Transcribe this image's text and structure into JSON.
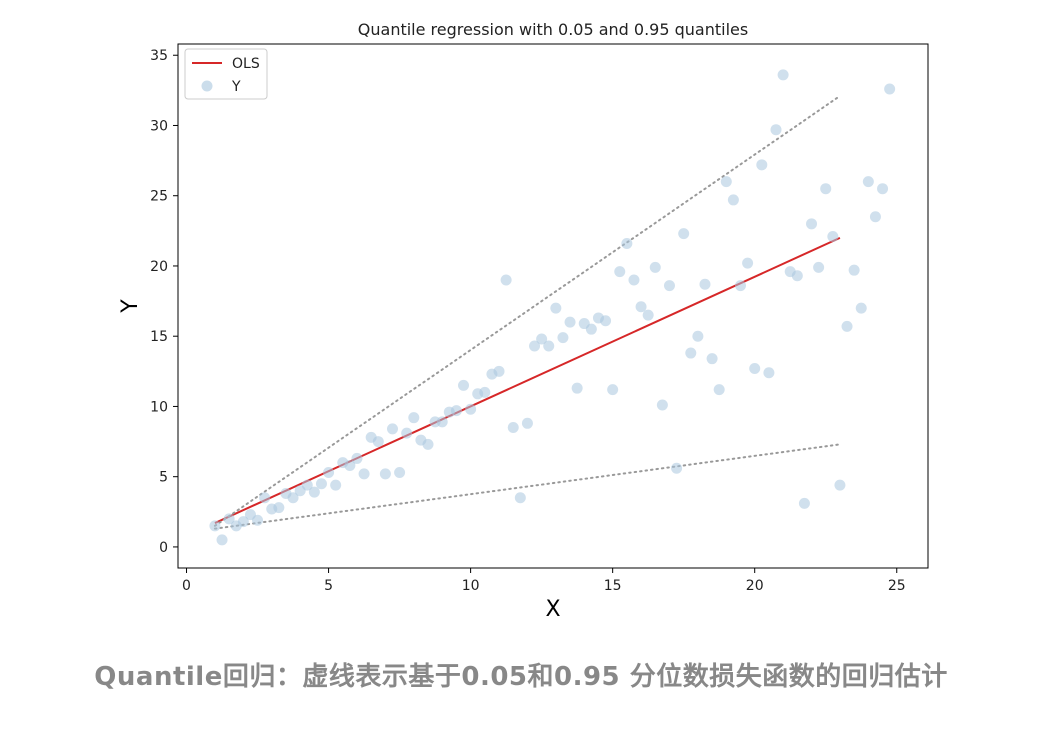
{
  "chart_data": {
    "type": "scatter",
    "title": "Quantile regression with 0.05 and 0.95 quantiles",
    "xlabel": "X",
    "ylabel": "Y",
    "xlim": [
      -0.3,
      26.1
    ],
    "ylim": [
      -1.5,
      35.8
    ],
    "xticks": [
      0,
      5,
      10,
      15,
      20,
      25
    ],
    "yticks": [
      0,
      5,
      10,
      15,
      20,
      25,
      30,
      35
    ],
    "grid": false,
    "legend_position": "top-left",
    "series": [
      {
        "name": "OLS",
        "kind": "line",
        "color": "#d62728",
        "x": [
          1.0,
          23.0
        ],
        "y": [
          1.7,
          22.0
        ]
      },
      {
        "name": "",
        "kind": "dotted-line",
        "color": "#999999",
        "x": [
          1.0,
          23.0
        ],
        "y": [
          1.5,
          32.1
        ]
      },
      {
        "name": "",
        "kind": "dotted-line",
        "color": "#999999",
        "x": [
          1.0,
          23.0
        ],
        "y": [
          1.3,
          7.3
        ]
      },
      {
        "name": "Y",
        "kind": "scatter",
        "color": "#a9c6de",
        "points": [
          [
            1.0,
            1.5
          ],
          [
            1.25,
            0.5
          ],
          [
            1.5,
            2.0
          ],
          [
            1.75,
            1.5
          ],
          [
            2.0,
            1.8
          ],
          [
            2.25,
            2.3
          ],
          [
            2.5,
            1.9
          ],
          [
            2.75,
            3.5
          ],
          [
            3.0,
            2.7
          ],
          [
            3.25,
            2.8
          ],
          [
            3.5,
            3.8
          ],
          [
            3.75,
            3.5
          ],
          [
            4.0,
            4.0
          ],
          [
            4.25,
            4.4
          ],
          [
            4.5,
            3.9
          ],
          [
            4.75,
            4.5
          ],
          [
            5.0,
            5.3
          ],
          [
            5.25,
            4.4
          ],
          [
            5.5,
            6.0
          ],
          [
            5.75,
            5.8
          ],
          [
            6.0,
            6.3
          ],
          [
            6.25,
            5.2
          ],
          [
            6.5,
            7.8
          ],
          [
            6.75,
            7.5
          ],
          [
            7.0,
            5.2
          ],
          [
            7.25,
            8.4
          ],
          [
            7.5,
            5.3
          ],
          [
            7.75,
            8.1
          ],
          [
            8.0,
            9.2
          ],
          [
            8.25,
            7.6
          ],
          [
            8.5,
            7.3
          ],
          [
            8.75,
            8.9
          ],
          [
            9.0,
            8.9
          ],
          [
            9.25,
            9.6
          ],
          [
            9.5,
            9.7
          ],
          [
            9.75,
            11.5
          ],
          [
            10.0,
            9.8
          ],
          [
            10.25,
            10.9
          ],
          [
            10.5,
            11.0
          ],
          [
            10.75,
            12.3
          ],
          [
            11.0,
            12.5
          ],
          [
            11.25,
            19.0
          ],
          [
            11.5,
            8.5
          ],
          [
            11.75,
            3.5
          ],
          [
            12.0,
            8.8
          ],
          [
            12.25,
            14.3
          ],
          [
            12.5,
            14.8
          ],
          [
            12.75,
            14.3
          ],
          [
            13.0,
            17.0
          ],
          [
            13.25,
            14.9
          ],
          [
            13.5,
            16.0
          ],
          [
            13.75,
            11.3
          ],
          [
            14.0,
            15.9
          ],
          [
            14.25,
            15.5
          ],
          [
            14.5,
            16.3
          ],
          [
            14.75,
            16.1
          ],
          [
            15.0,
            11.2
          ],
          [
            15.25,
            19.6
          ],
          [
            15.5,
            21.6
          ],
          [
            15.75,
            19.0
          ],
          [
            16.0,
            17.1
          ],
          [
            16.25,
            16.5
          ],
          [
            16.5,
            19.9
          ],
          [
            16.75,
            10.1
          ],
          [
            17.0,
            18.6
          ],
          [
            17.25,
            5.6
          ],
          [
            17.5,
            22.3
          ],
          [
            17.75,
            13.8
          ],
          [
            18.0,
            15.0
          ],
          [
            18.25,
            18.7
          ],
          [
            18.5,
            13.4
          ],
          [
            18.75,
            11.2
          ],
          [
            19.0,
            26.0
          ],
          [
            19.25,
            24.7
          ],
          [
            19.5,
            18.6
          ],
          [
            19.75,
            20.2
          ],
          [
            20.0,
            12.7
          ],
          [
            20.25,
            27.2
          ],
          [
            20.5,
            12.4
          ],
          [
            20.75,
            29.7
          ],
          [
            21.0,
            33.6
          ],
          [
            21.25,
            19.6
          ],
          [
            21.5,
            19.3
          ],
          [
            21.75,
            3.1
          ],
          [
            22.0,
            23.0
          ],
          [
            22.25,
            19.9
          ],
          [
            22.5,
            25.5
          ],
          [
            22.75,
            22.1
          ],
          [
            23.0,
            4.4
          ],
          [
            23.25,
            15.7
          ],
          [
            23.5,
            19.7
          ],
          [
            23.75,
            17.0
          ],
          [
            24.0,
            26.0
          ],
          [
            24.25,
            23.5
          ],
          [
            24.5,
            25.5
          ],
          [
            24.75,
            32.6
          ]
        ]
      }
    ]
  },
  "caption": "Quantile回归：虚线表示基于0.05和0.95 分位数损失函数的回归估计"
}
